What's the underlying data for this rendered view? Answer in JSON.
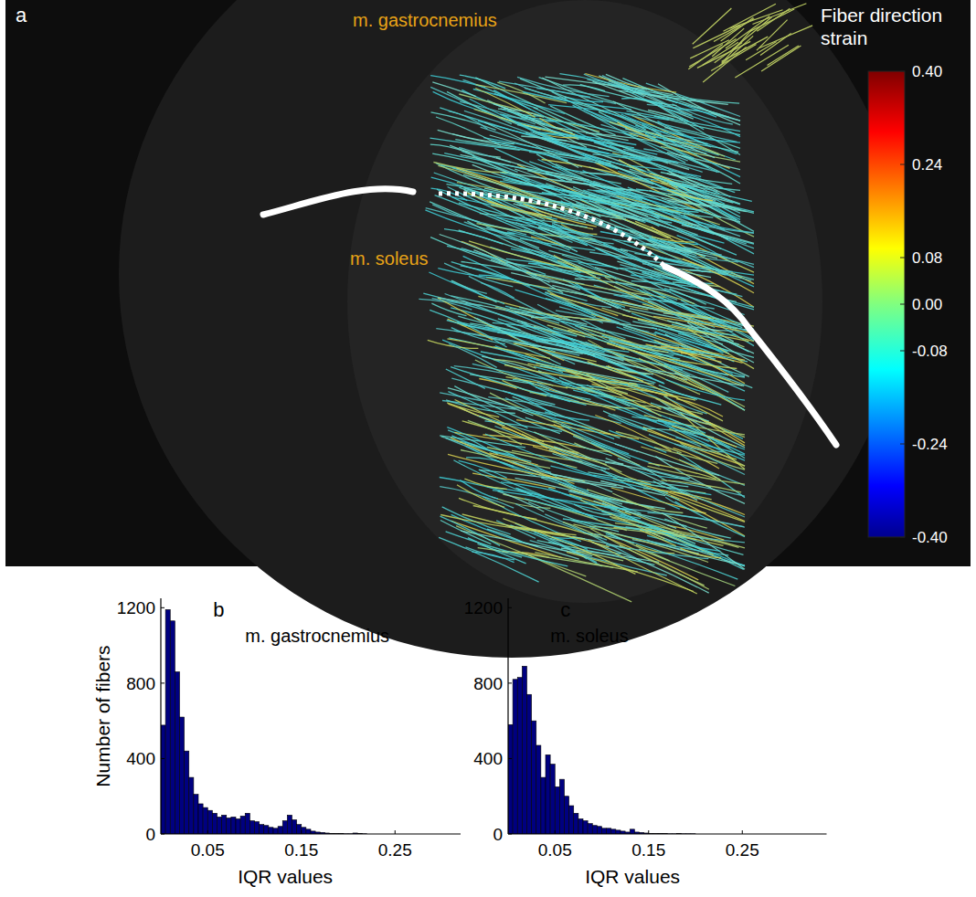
{
  "chart_data": [
    {
      "type": "colorbar",
      "panel_label": "a",
      "title": "Fiber direction strain",
      "annotations": [
        "m. gastrocnemius",
        "m. soleus"
      ],
      "colorbar": {
        "range": [
          -0.4,
          0.4
        ],
        "ticks": [
          {
            "value": 0.4,
            "label": "0.40"
          },
          0.24,
          0.08,
          {
            "value": 0,
            "label": "0.00"
          },
          -0.08,
          -0.24,
          {
            "value": -0.4,
            "label": "-0.40"
          }
        ]
      }
    },
    {
      "type": "histogram",
      "panel_label": "b",
      "title": "m. gastrocnemius",
      "x_label": "IQR values",
      "y_label": "Number of fibers",
      "color": "#000080",
      "bins": [
        0,
        0.005,
        0.01,
        0.015,
        0.02,
        0.025,
        0.03,
        0.035,
        0.04,
        0.045,
        0.05,
        0.055,
        0.06,
        0.065,
        0.07,
        0.075,
        0.08,
        0.085,
        0.09,
        0.095,
        0.1,
        0.105,
        0.11,
        0.115,
        0.12,
        0.125,
        0.13,
        0.135,
        0.14,
        0.145,
        0.15,
        0.155,
        0.16,
        0.165,
        0.17,
        0.175,
        0.18,
        0.185,
        0.19,
        0.195,
        0.2,
        0.205,
        0.21,
        0.215,
        0.22
      ],
      "values": [
        577,
        1190,
        1130,
        860,
        620,
        440,
        300,
        210,
        160,
        140,
        125,
        110,
        90,
        100,
        85,
        90,
        80,
        95,
        110,
        70,
        65,
        50,
        45,
        35,
        30,
        40,
        70,
        100,
        75,
        50,
        35,
        25,
        15,
        10,
        8,
        5,
        3,
        2,
        2,
        1,
        1,
        5,
        3,
        1
      ],
      "xlim": [
        0,
        0.32
      ],
      "xticks": [
        0.05,
        0.15,
        0.25
      ],
      "ylim": [
        0,
        1250
      ],
      "yticks": [
        0,
        400,
        800,
        1200
      ]
    },
    {
      "type": "histogram",
      "panel_label": "c",
      "title": "m. soleus",
      "x_label": "IQR values",
      "color": "#000080",
      "bins": [
        0,
        0.005,
        0.01,
        0.015,
        0.02,
        0.025,
        0.03,
        0.035,
        0.04,
        0.045,
        0.05,
        0.055,
        0.06,
        0.065,
        0.07,
        0.075,
        0.08,
        0.085,
        0.09,
        0.095,
        0.1,
        0.105,
        0.11,
        0.115,
        0.12,
        0.125,
        0.13,
        0.135,
        0.14,
        0.145,
        0.15,
        0.155,
        0.16,
        0.165,
        0.17,
        0.175,
        0.18,
        0.185,
        0.19,
        0.195,
        0.2
      ],
      "values": [
        580,
        820,
        830,
        890,
        740,
        600,
        470,
        300,
        420,
        370,
        250,
        290,
        200,
        150,
        110,
        80,
        70,
        55,
        45,
        40,
        30,
        30,
        25,
        20,
        15,
        10,
        25,
        10,
        8,
        5,
        3,
        2,
        3,
        2,
        1,
        1,
        2,
        1,
        1,
        1
      ],
      "xlim": [
        0,
        0.34
      ],
      "xticks": [
        0.05,
        0.15,
        0.25
      ],
      "ylim": [
        0,
        1250
      ],
      "yticks": [
        0,
        400,
        800,
        1200
      ]
    }
  ]
}
